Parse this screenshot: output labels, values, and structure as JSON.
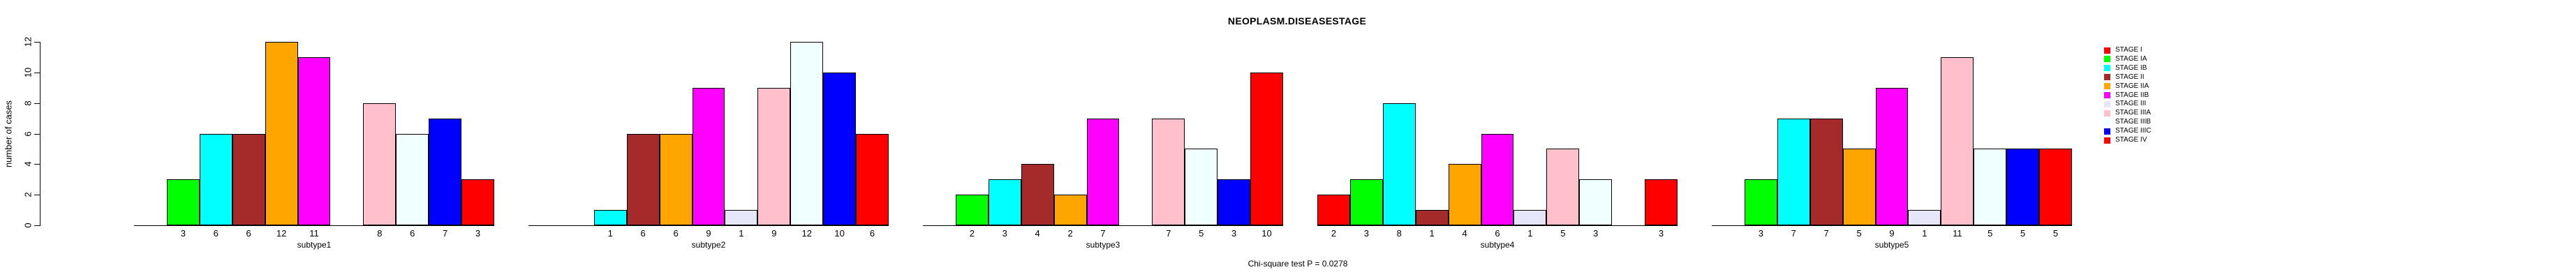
{
  "chart_data": {
    "type": "bar",
    "title": "NEOPLASM.DISEASESTAGE",
    "ylabel": "number of cases",
    "footnote": "Chi-square test P = 0.0278",
    "ylim": [
      0,
      12
    ],
    "yticks": [
      0,
      2,
      4,
      6,
      8,
      10,
      12
    ],
    "grid": "off",
    "legend_position": "right",
    "stages": [
      {
        "name": "STAGE I",
        "color": "#FF0000"
      },
      {
        "name": "STAGE IA",
        "color": "#00FF00"
      },
      {
        "name": "STAGE IB",
        "color": "#00FFFF"
      },
      {
        "name": "STAGE II",
        "color": "#A52A2A"
      },
      {
        "name": "STAGE IIA",
        "color": "#FFA500"
      },
      {
        "name": "STAGE IIB",
        "color": "#FF00FF"
      },
      {
        "name": "STAGE III",
        "color": "#E6E6FA"
      },
      {
        "name": "STAGE IIIA",
        "color": "#FFC0CB"
      },
      {
        "name": "STAGE IIIB",
        "color": "#F0FFFF"
      },
      {
        "name": "STAGE IIIC",
        "color": "#0000FF"
      },
      {
        "name": "STAGE IV",
        "color": "#FF0000"
      }
    ],
    "panels": [
      {
        "label": "subtype1",
        "values": [
          0,
          3,
          6,
          6,
          12,
          11,
          0,
          8,
          6,
          7,
          3
        ]
      },
      {
        "label": "subtype2",
        "values": [
          0,
          0,
          1,
          6,
          6,
          9,
          1,
          9,
          12,
          10,
          6
        ]
      },
      {
        "label": "subtype3",
        "values": [
          0,
          2,
          3,
          4,
          2,
          7,
          0,
          7,
          5,
          3,
          10
        ]
      },
      {
        "label": "subtype4",
        "values": [
          2,
          3,
          8,
          1,
          4,
          6,
          1,
          5,
          3,
          0,
          3
        ]
      },
      {
        "label": "subtype5",
        "values": [
          0,
          3,
          7,
          7,
          5,
          9,
          1,
          11,
          5,
          5,
          5
        ]
      }
    ],
    "bar_value_labels_shown_only_for_nonzero": true
  }
}
